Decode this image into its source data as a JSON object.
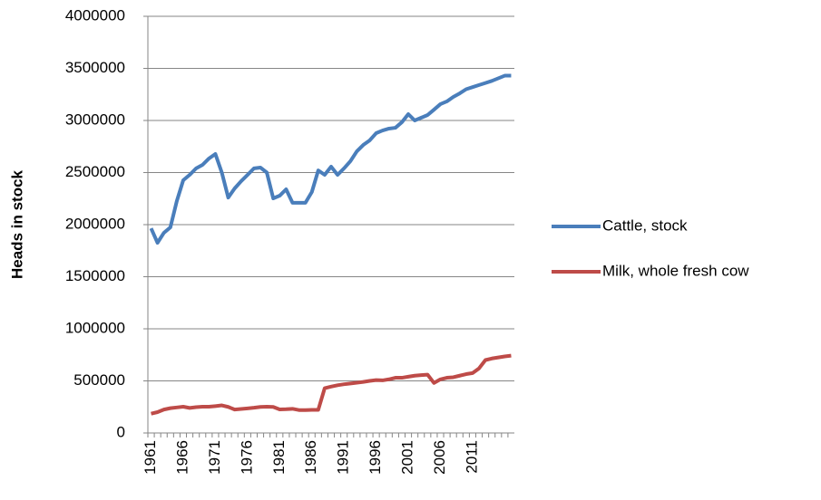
{
  "chart_data": {
    "type": "line",
    "y_label": "Heads in stock",
    "categories": [
      "1961",
      null,
      null,
      null,
      null,
      "1966",
      null,
      null,
      null,
      null,
      "1971",
      null,
      null,
      null,
      null,
      "1976",
      null,
      null,
      null,
      null,
      "1981",
      null,
      null,
      null,
      null,
      "1986",
      null,
      null,
      null,
      null,
      "1991",
      null,
      null,
      null,
      null,
      "1996",
      null,
      null,
      null,
      null,
      "2001",
      null,
      null,
      null,
      null,
      "2006",
      null,
      null,
      null,
      null,
      "2011",
      null,
      null,
      null,
      null,
      null,
      null
    ],
    "series": [
      {
        "name": "Cattle, stock",
        "color": "#4a7ebb",
        "values": [
          1965000,
          1826000,
          1922000,
          1974000,
          2226000,
          2426000,
          2478000,
          2540000,
          2574000,
          2635000,
          2678000,
          2500000,
          2260000,
          2348000,
          2417000,
          2478000,
          2540000,
          2548000,
          2500000,
          2252000,
          2278000,
          2339000,
          2210000,
          2210000,
          2210000,
          2313000,
          2520000,
          2478000,
          2557000,
          2478000,
          2540000,
          2609000,
          2704000,
          2765000,
          2809000,
          2878000,
          2904000,
          2922000,
          2930000,
          2983000,
          3061000,
          3000000,
          3026000,
          3052000,
          3104000,
          3157000,
          3183000,
          3226000,
          3260000,
          3300000,
          3320000,
          3340000,
          3360000,
          3380000,
          3405000,
          3430000,
          3430000
        ]
      },
      {
        "name": "Milk, whole fresh cow",
        "color": "#be4b48",
        "values": [
          185000,
          200000,
          225000,
          238000,
          245000,
          252000,
          240000,
          248000,
          252000,
          252000,
          258000,
          265000,
          250000,
          225000,
          230000,
          236000,
          242000,
          250000,
          252000,
          250000,
          226000,
          228000,
          232000,
          220000,
          220000,
          222000,
          222000,
          430000,
          445000,
          458000,
          468000,
          475000,
          482000,
          490000,
          500000,
          508000,
          505000,
          515000,
          530000,
          530000,
          540000,
          550000,
          555000,
          560000,
          480000,
          515000,
          530000,
          535000,
          550000,
          565000,
          575000,
          620000,
          700000,
          715000,
          725000,
          735000,
          742000
        ]
      }
    ],
    "ylim": [
      0,
      4000000
    ],
    "yticks": [
      0,
      500000,
      1000000,
      1500000,
      2000000,
      2500000,
      3000000,
      3500000,
      4000000
    ],
    "grid": true,
    "legend": "right"
  }
}
